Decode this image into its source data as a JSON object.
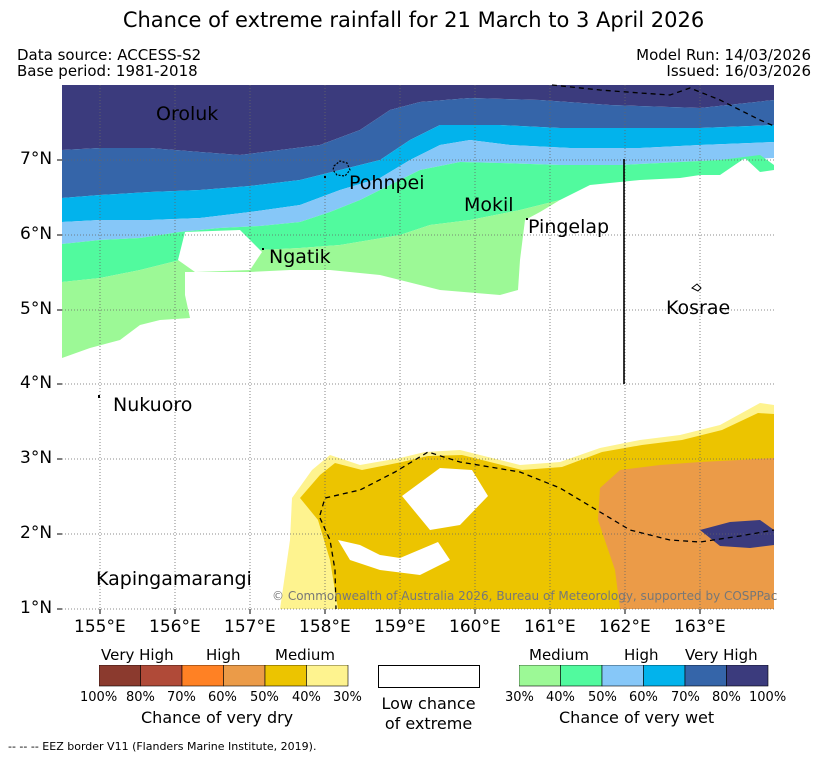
{
  "title": "Chance of extreme rainfall for 21 March to 3 April 2026",
  "data_source": "Data source: ACCESS-S2",
  "base_period": "Base period: 1981-2018",
  "model_run": "Model Run: 14/03/2026",
  "issued": "Issued: 16/03/2026",
  "map": {
    "lon_ticks": [
      "155°E",
      "156°E",
      "157°E",
      "158°E",
      "159°E",
      "160°E",
      "161°E",
      "162°E",
      "163°E"
    ],
    "lat_ticks": [
      "7°N",
      "6°N",
      "5°N",
      "4°N",
      "3°N",
      "2°N",
      "1°N"
    ],
    "places": {
      "oroluk": "Oroluk",
      "pohnpei": "Pohnpei",
      "mokil": "Mokil",
      "pingelap": "Pingelap",
      "ngatik": "Ngatik",
      "kosrae": "Kosrae",
      "nukuoro": "Nukuoro",
      "kapingamarangi": "Kapingamarangi"
    },
    "copyright": "© Commonwealth of Australia 2026, Bureau of Meteorology, supported by COSPPac"
  },
  "legend": {
    "dry": {
      "headers": [
        "Very High",
        "High",
        "Medium"
      ],
      "ticks": [
        "100%",
        "80%",
        "70%",
        "60%",
        "50%",
        "40%",
        "30%"
      ],
      "colors": [
        "#8b3a2e",
        "#b04a38",
        "#ff8124",
        "#eb9b48",
        "#ecc400",
        "#fef38f"
      ],
      "title": "Chance of very dry"
    },
    "low": {
      "line1": "Low chance",
      "line2": "of extreme"
    },
    "wet": {
      "headers": [
        "Medium",
        "High",
        "Very High"
      ],
      "ticks": [
        "30%",
        "40%",
        "50%",
        "60%",
        "70%",
        "80%",
        "100%"
      ],
      "colors": [
        "#9cf996",
        "#51fa9e",
        "#86c7f8",
        "#02b3ec",
        "#3565a9",
        "#3b3b7d"
      ],
      "title": "Chance of very wet"
    }
  },
  "eez_note": "--  --  -- EEZ border V11 (Flanders Marine Institute, 2019)."
}
